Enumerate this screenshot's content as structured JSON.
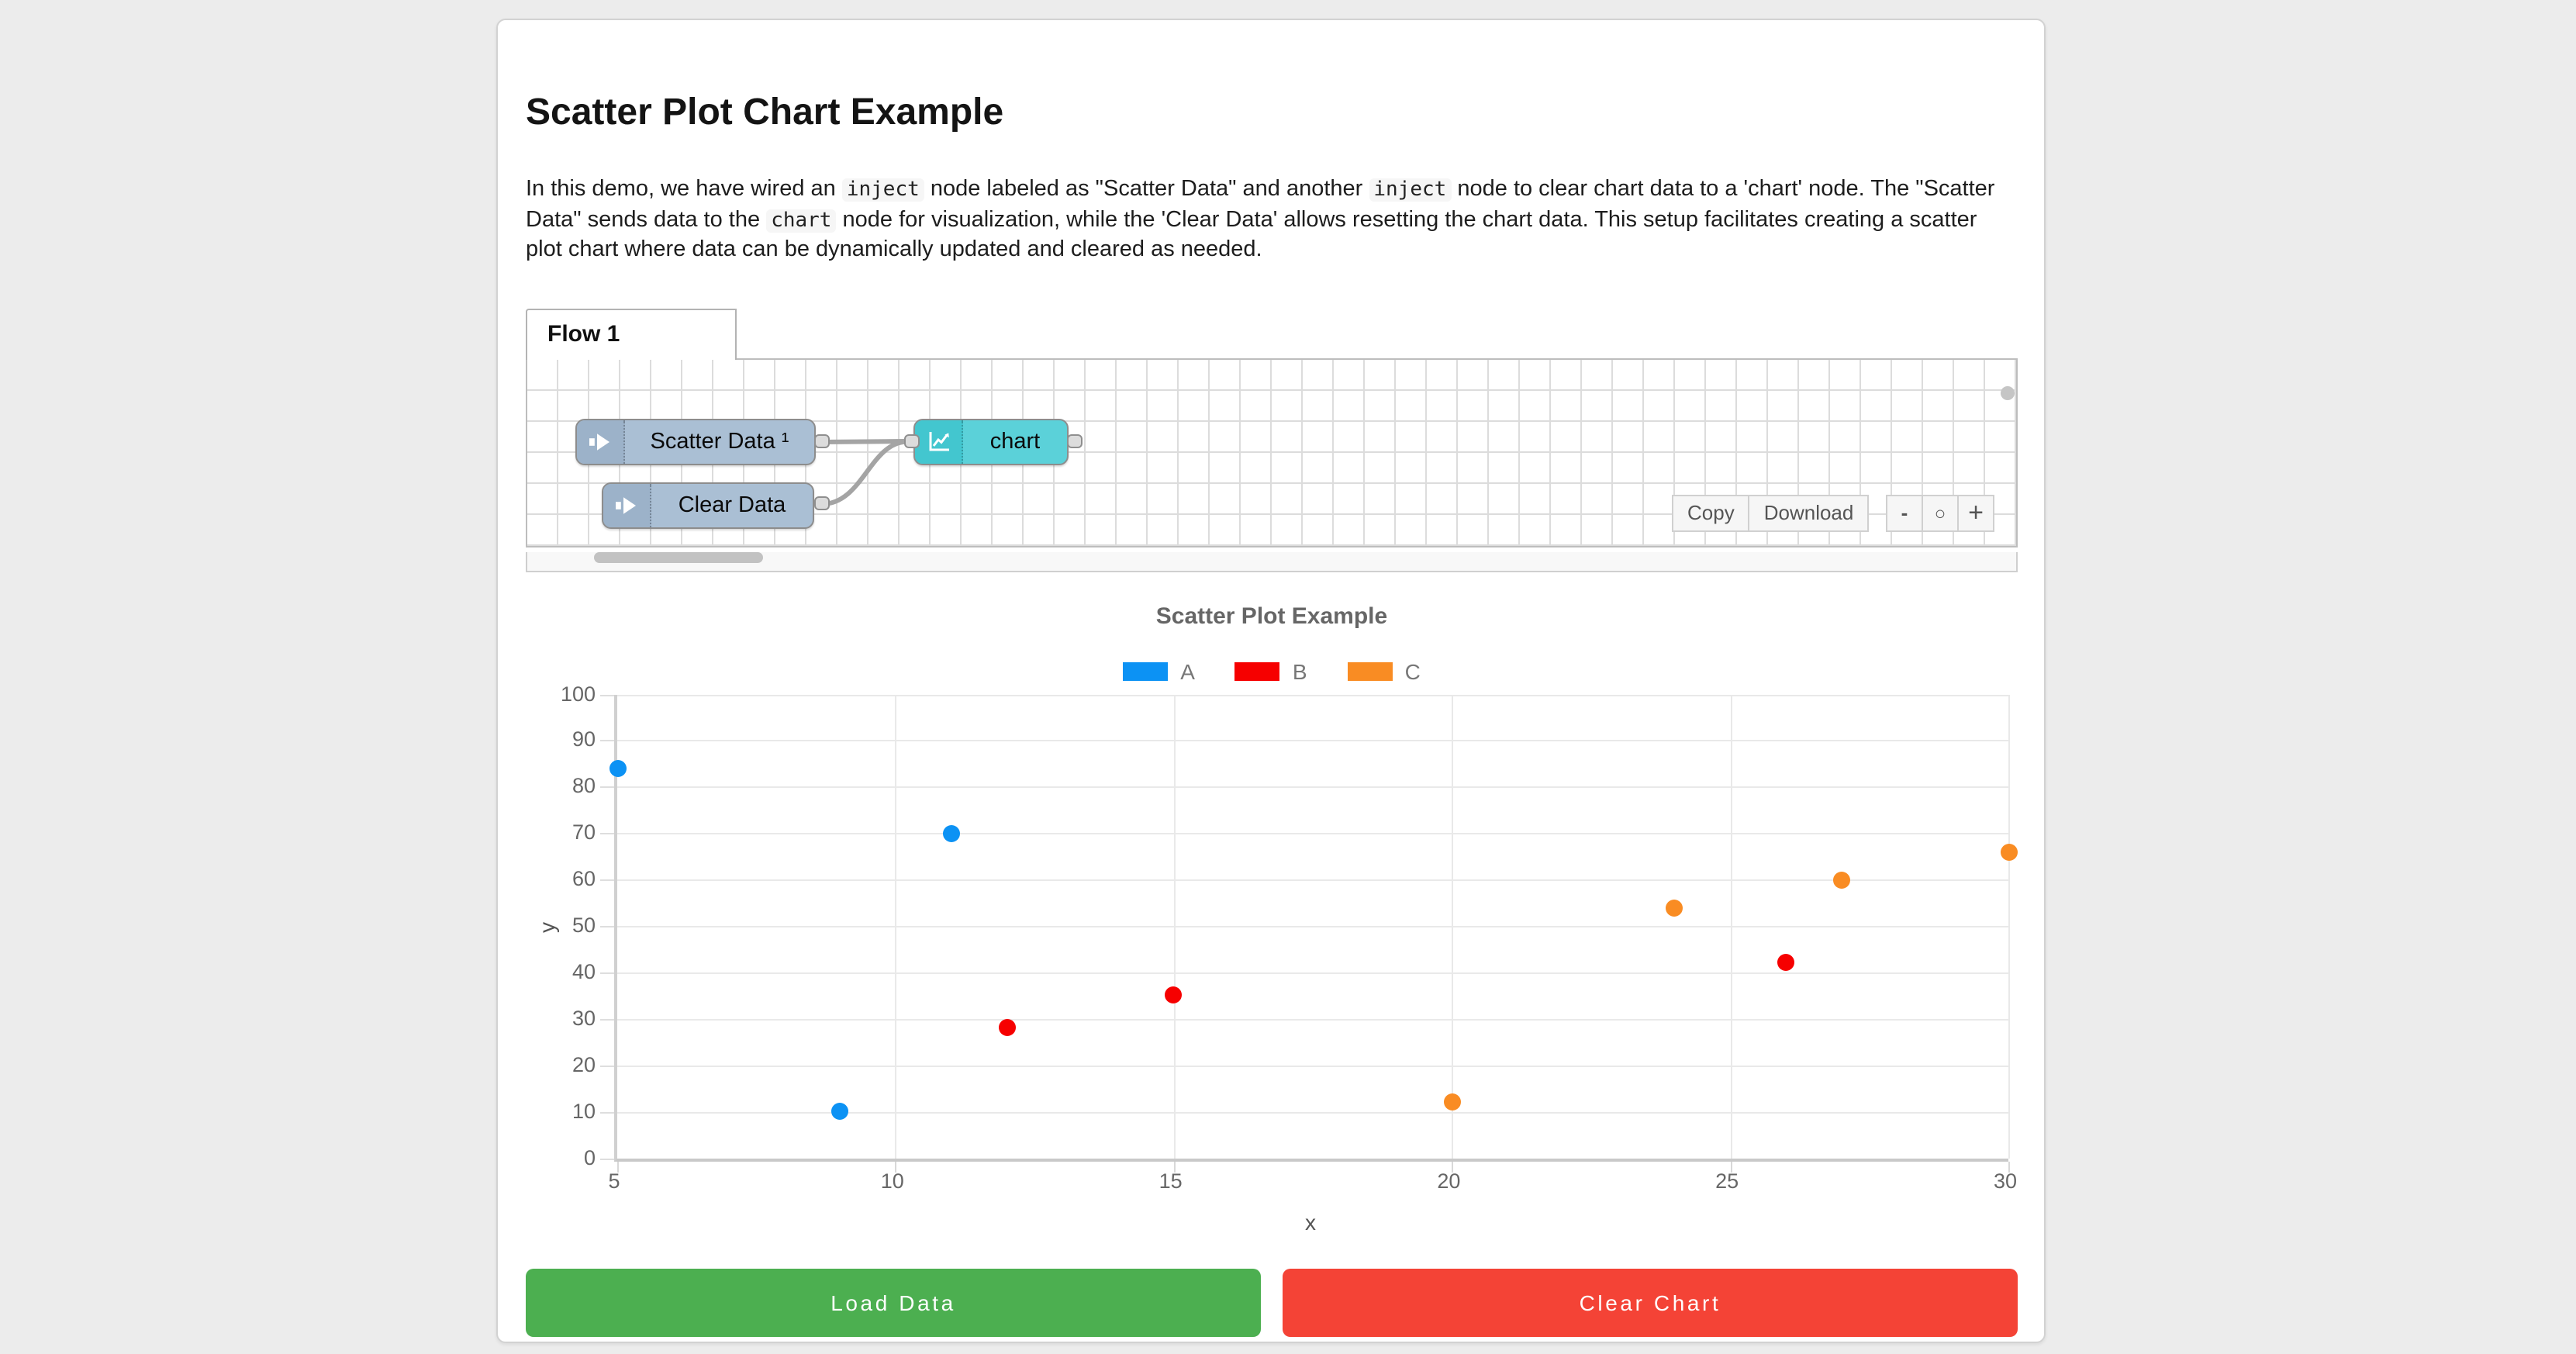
{
  "page": {
    "background": "#ececec"
  },
  "header": {
    "title": "Scatter Plot Chart Example"
  },
  "description": {
    "segments": [
      {
        "type": "text",
        "text": "In this demo, we have wired an "
      },
      {
        "type": "code",
        "text": "inject"
      },
      {
        "type": "text",
        "text": " node labeled as \"Scatter Data\" and another "
      },
      {
        "type": "code",
        "text": "inject"
      },
      {
        "type": "text",
        "text": " node to clear chart data to a 'chart' node. The \"Scatter Data\" sends data to the "
      },
      {
        "type": "code",
        "text": "chart"
      },
      {
        "type": "text",
        "text": " node for visualization, while the 'Clear Data' allows resetting the chart data. This setup facilitates creating a scatter plot chart where data can be dynamically updated and cleared as needed."
      }
    ]
  },
  "flow_editor": {
    "tab_label": "Flow 1",
    "nodes": [
      {
        "label": "Scatter Data ¹",
        "type": "inject"
      },
      {
        "label": "Clear Data",
        "type": "inject"
      },
      {
        "label": "chart",
        "type": "chart"
      }
    ],
    "toolbar": {
      "copy_label": "Copy",
      "download_label": "Download"
    },
    "zoom_controls": {
      "minus_label": "-",
      "reset_label": "○",
      "plus_label": "+"
    },
    "node_colors": {
      "inject_body": "#aabfd4",
      "inject_icon": "#9cb2c9",
      "chart_body": "#5bd1d9",
      "chart_icon": "#43c6cf"
    }
  },
  "chart_data": {
    "type": "scatter",
    "title": "Scatter Plot Example",
    "xlabel": "x",
    "ylabel": "y",
    "xlim": [
      5,
      30
    ],
    "ylim": [
      0,
      100
    ],
    "xticks": [
      5,
      10,
      15,
      20,
      25,
      30
    ],
    "yticks": [
      0,
      10,
      20,
      30,
      40,
      50,
      60,
      70,
      80,
      90,
      100
    ],
    "grid": true,
    "legend_position": "top-center",
    "series": [
      {
        "name": "A",
        "color": "#0c92f4",
        "points": [
          [
            5,
            84
          ],
          [
            9,
            10
          ],
          [
            11,
            70
          ]
        ]
      },
      {
        "name": "B",
        "color": "#f60000",
        "points": [
          [
            12,
            28
          ],
          [
            15,
            35
          ],
          [
            26,
            42
          ]
        ]
      },
      {
        "name": "C",
        "color": "#f98c23",
        "points": [
          [
            20,
            12
          ],
          [
            24,
            54
          ],
          [
            27,
            60
          ],
          [
            30,
            66
          ]
        ]
      }
    ]
  },
  "actions": {
    "load_label": "Load Data",
    "load_color": "#4caf50",
    "clear_label": "Clear Chart",
    "clear_color": "#f44336"
  }
}
